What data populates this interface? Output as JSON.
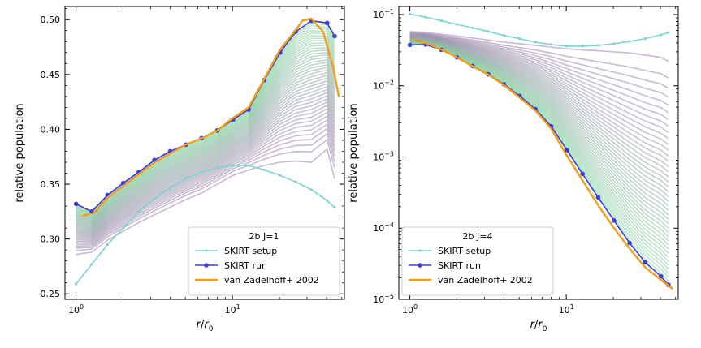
{
  "chart_data": [
    {
      "type": "line",
      "xscale": "log",
      "yscale": "linear",
      "xlim": [
        0.85,
        52
      ],
      "ylim": [
        0.245,
        0.512
      ],
      "xlabel": {
        "main": "r",
        "sep": "/",
        "sub": "0"
      },
      "ylabel": "relative population",
      "xticks": [
        {
          "value": 1,
          "base": "10",
          "exp": "0"
        },
        {
          "value": 10,
          "base": "10",
          "exp": "1"
        }
      ],
      "yticks": [
        0.25,
        0.3,
        0.35,
        0.4,
        0.45,
        0.5
      ],
      "ytick_labels": [
        "0.25",
        "0.30",
        "0.35",
        "0.40",
        "0.45",
        "0.50"
      ],
      "legend": {
        "title": "2b J=1",
        "placement": "lower-right"
      },
      "series": [
        {
          "name": "SKIRT setup",
          "color": "#7fd3d3",
          "marker": "small-dot",
          "x": [
            1.0,
            1.26,
            1.59,
            2.0,
            2.52,
            3.17,
            4.0,
            5.04,
            6.35,
            8.0,
            10.1,
            12.7,
            16.0,
            20.2,
            25.4,
            32.0,
            40.3,
            45.0
          ],
          "y": [
            0.259,
            0.277,
            0.295,
            0.31,
            0.325,
            0.337,
            0.347,
            0.355,
            0.361,
            0.365,
            0.367,
            0.367,
            0.363,
            0.358,
            0.352,
            0.345,
            0.335,
            0.329
          ]
        },
        {
          "name": "SKIRT run",
          "color": "#3d3ddb",
          "marker": "dot",
          "x": [
            1.0,
            1.26,
            1.59,
            2.0,
            2.52,
            3.17,
            4.0,
            5.04,
            6.35,
            8.0,
            10.1,
            12.7,
            16.0,
            20.2,
            25.4,
            32.0,
            40.3,
            45.0
          ],
          "y": [
            0.332,
            0.325,
            0.34,
            0.351,
            0.361,
            0.372,
            0.38,
            0.386,
            0.392,
            0.399,
            0.409,
            0.418,
            0.445,
            0.47,
            0.489,
            0.499,
            0.497,
            0.485
          ]
        },
        {
          "name": "van Zadelhoff+ 2002",
          "color": "#f29e1b",
          "marker": "none",
          "x": [
            1.1,
            1.3,
            1.6,
            2.0,
            2.5,
            3.2,
            4.0,
            5.0,
            6.4,
            8.0,
            10.0,
            12.7,
            16.0,
            20.0,
            25.5,
            28.0,
            32.0,
            38.0,
            44.0,
            48.0
          ],
          "y": [
            0.321,
            0.324,
            0.338,
            0.348,
            0.359,
            0.37,
            0.378,
            0.386,
            0.392,
            0.399,
            0.41,
            0.42,
            0.446,
            0.472,
            0.491,
            0.499,
            0.501,
            0.489,
            0.457,
            0.429
          ]
        }
      ],
      "iteration_curves": {
        "count": 42,
        "start_color": "#9c7fab",
        "end_color": "#84d8a0",
        "x": [
          1.0,
          1.26,
          1.59,
          2.0,
          2.52,
          3.17,
          4.0,
          5.04,
          6.35,
          8.0,
          10.1,
          12.7,
          16.0,
          20.2,
          25.4,
          32.0,
          40.3,
          45.0
        ],
        "first_y": [
          0.286,
          0.288,
          0.299,
          0.307,
          0.315,
          0.322,
          0.329,
          0.336,
          0.342,
          0.35,
          0.358,
          0.363,
          0.367,
          0.37,
          0.371,
          0.37,
          0.382,
          0.355
        ],
        "last_y": [
          0.332,
          0.325,
          0.34,
          0.351,
          0.361,
          0.372,
          0.38,
          0.386,
          0.392,
          0.399,
          0.409,
          0.418,
          0.445,
          0.47,
          0.489,
          0.499,
          0.497,
          0.485
        ]
      }
    },
    {
      "type": "line",
      "xscale": "log",
      "yscale": "log",
      "xlim": [
        0.85,
        52
      ],
      "ylim": [
        1e-05,
        0.13
      ],
      "xlabel": {
        "main": "r",
        "sep": "/",
        "sub": "0"
      },
      "ylabel": "relative population",
      "xticks": [
        {
          "value": 1,
          "base": "10",
          "exp": "0"
        },
        {
          "value": 10,
          "base": "10",
          "exp": "1"
        }
      ],
      "yticks": [
        {
          "value": 1e-05,
          "base": "10",
          "exp": "−5"
        },
        {
          "value": 0.0001,
          "base": "10",
          "exp": "−4"
        },
        {
          "value": 0.001,
          "base": "10",
          "exp": "−3"
        },
        {
          "value": 0.01,
          "base": "10",
          "exp": "−2"
        },
        {
          "value": 0.1,
          "base": "10",
          "exp": "−1"
        }
      ],
      "legend": {
        "title": "2b J=4",
        "placement": "lower-left"
      },
      "series": [
        {
          "name": "SKIRT setup",
          "color": "#7fd3d3",
          "marker": "small-dot",
          "x": [
            1.0,
            1.26,
            1.59,
            2.0,
            2.52,
            3.17,
            4.0,
            5.04,
            6.35,
            8.0,
            10.1,
            12.7,
            16.0,
            20.2,
            25.4,
            32.0,
            40.3,
            45.0
          ],
          "y": [
            0.102,
            0.092,
            0.082,
            0.073,
            0.065,
            0.058,
            0.051,
            0.046,
            0.041,
            0.038,
            0.036,
            0.036,
            0.037,
            0.039,
            0.042,
            0.046,
            0.052,
            0.056
          ]
        },
        {
          "name": "SKIRT run",
          "color": "#3d3ddb",
          "marker": "dot",
          "x": [
            1.0,
            1.26,
            1.59,
            2.0,
            2.52,
            3.17,
            4.0,
            5.04,
            6.35,
            8.0,
            10.1,
            12.7,
            16.0,
            20.2,
            25.4,
            32.0,
            40.3,
            45.0
          ],
          "y": [
            0.0375,
            0.038,
            0.032,
            0.025,
            0.019,
            0.0145,
            0.0105,
            0.0072,
            0.0047,
            0.0027,
            0.00125,
            0.00058,
            0.00027,
            0.000128,
            6.2e-05,
            3.3e-05,
            2.1e-05,
            1.6e-05
          ]
        },
        {
          "name": "van Zadelhoff+ 2002",
          "color": "#f29e1b",
          "marker": "none",
          "x": [
            1.05,
            1.3,
            1.6,
            2.0,
            2.5,
            3.2,
            4.0,
            5.0,
            6.4,
            8.0,
            10.0,
            12.7,
            16.0,
            20.0,
            25.5,
            32.0,
            40.0,
            48.0
          ],
          "y": [
            0.045,
            0.039,
            0.032,
            0.025,
            0.019,
            0.0142,
            0.0102,
            0.0069,
            0.0044,
            0.0025,
            0.00108,
            0.00047,
            0.00021,
            0.000103,
            5.1e-05,
            2.8e-05,
            1.9e-05,
            1.4e-05
          ]
        }
      ],
      "iteration_curves": {
        "count": 42,
        "start_color": "#9c7fab",
        "end_color": "#84d8a0",
        "x": [
          1.0,
          1.26,
          1.59,
          2.0,
          2.52,
          3.17,
          4.0,
          5.04,
          6.35,
          8.0,
          10.1,
          12.7,
          16.0,
          20.2,
          25.4,
          32.0,
          40.3,
          45.0
        ],
        "first_y": [
          0.058,
          0.056,
          0.053,
          0.05,
          0.047,
          0.044,
          0.041,
          0.039,
          0.037,
          0.035,
          0.033,
          0.032,
          0.031,
          0.03,
          0.029,
          0.027,
          0.025,
          0.022
        ],
        "last_y": [
          0.0375,
          0.038,
          0.032,
          0.025,
          0.019,
          0.0145,
          0.0105,
          0.0072,
          0.0047,
          0.0027,
          0.00125,
          0.00058,
          0.00027,
          0.000128,
          6.2e-05,
          3.3e-05,
          2.1e-05,
          1.6e-05
        ]
      }
    }
  ]
}
